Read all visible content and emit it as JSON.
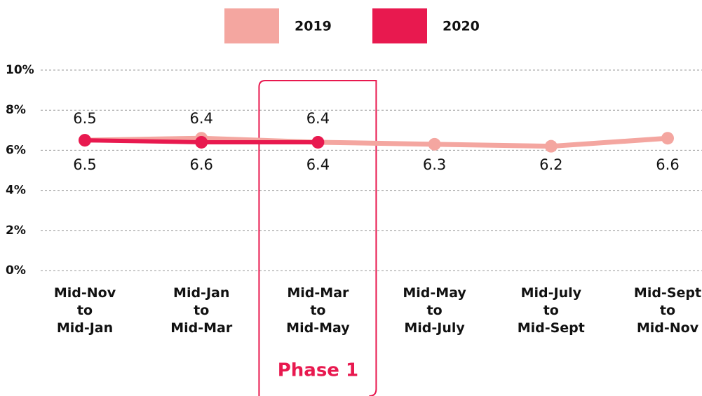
{
  "chart_data": {
    "type": "line",
    "categories": [
      "Mid-Nov to Mid-Jan",
      "Mid-Jan to Mid-Mar",
      "Mid-Mar to Mid-May",
      "Mid-May to Mid-July",
      "Mid-July to Mid-Sept",
      "Mid-Sept to Mid-Nov"
    ],
    "series": [
      {
        "name": "2019",
        "color": "#f4a6a0",
        "values": [
          6.5,
          6.6,
          6.4,
          6.3,
          6.2,
          6.6
        ]
      },
      {
        "name": "2020",
        "color": "#e8194f",
        "values": [
          6.5,
          6.4,
          6.4,
          null,
          null,
          null
        ]
      }
    ],
    "ylim": [
      0,
      10
    ],
    "yticks": [
      {
        "value": 0,
        "label": "0%"
      },
      {
        "value": 2,
        "label": "2%"
      },
      {
        "value": 4,
        "label": "4%"
      },
      {
        "value": 6,
        "label": "6%"
      },
      {
        "value": 8,
        "label": "8%"
      },
      {
        "value": 10,
        "label": "10%"
      }
    ],
    "grid": true,
    "legend": "top",
    "annotations": [
      {
        "text": "Phase 1",
        "category": 2
      }
    ]
  }
}
